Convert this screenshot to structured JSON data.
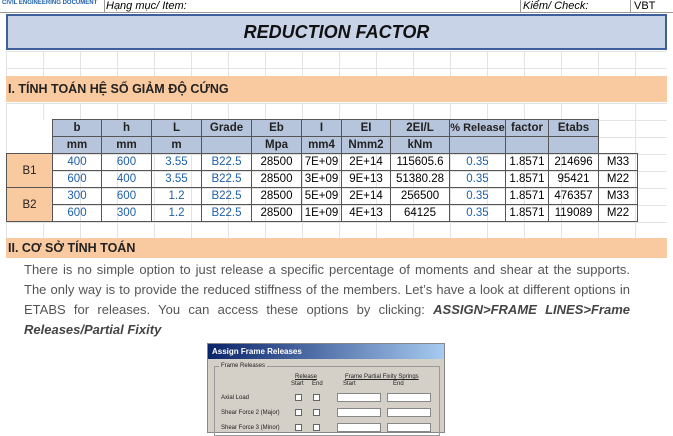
{
  "header": {
    "logo_text": "CIVIL ENGINEERING DOCUMENT",
    "item_label": "Hạng mục/ Item:",
    "check_label": "Kiểm/ Check:",
    "check_value": "VBT"
  },
  "title": "REDUCTION FACTOR",
  "section1": {
    "heading": "I. TÍNH TOÁN HỆ SỐ GIẢM ĐỘ CỨNG"
  },
  "table": {
    "headers_top": [
      "b",
      "h",
      "L",
      "Grade",
      "Eb",
      "I",
      "EI",
      "2EI/L",
      "% Release",
      "factor",
      "Etabs"
    ],
    "headers_unit": [
      "mm",
      "mm",
      "m",
      "",
      "Mpa",
      "mm4",
      "Nmm2",
      "kNm",
      "",
      "",
      ""
    ],
    "groups": [
      {
        "label": "B1",
        "rows": [
          [
            "400",
            "600",
            "3.55",
            "B22.5",
            "28500",
            "7E+09",
            "2E+14",
            "115605.6",
            "0.35",
            "1.8571",
            "214696",
            "M33"
          ],
          [
            "600",
            "400",
            "3.55",
            "B22.5",
            "28500",
            "3E+09",
            "9E+13",
            "51380.28",
            "0.35",
            "1.8571",
            "95421",
            "M22"
          ]
        ]
      },
      {
        "label": "B2",
        "rows": [
          [
            "300",
            "600",
            "1.2",
            "B22.5",
            "28500",
            "5E+09",
            "2E+14",
            "256500",
            "0.35",
            "1.8571",
            "476357",
            "M33"
          ],
          [
            "600",
            "300",
            "1.2",
            "B22.5",
            "28500",
            "1E+09",
            "4E+13",
            "64125",
            "0.35",
            "1.8571",
            "119089",
            "M22"
          ]
        ]
      }
    ]
  },
  "section2": {
    "heading": "II. CƠ SỞ TÍNH TOÁN",
    "paragraph": "There is no simple option to just release a specific percentage of moments and shear at the supports. The only way is to provide the reduced stiffness of the members. Let’s have a look at different options in ETABS for releases. You can access these options by clicking:",
    "paragraph_em": "ASSIGN>FRAME LINES>Frame Releases/Partial Fixity"
  },
  "dialog": {
    "title": "Assign Frame Releases",
    "group_label": "Frame Releases",
    "col_release": "Release",
    "col_partial": "Frame Partial Fixity Springs",
    "col_start": "Start",
    "col_end": "End",
    "rows": [
      "Axial Load",
      "Shear Force 2 (Major)",
      "Shear Force 3 (Minor)"
    ]
  },
  "colors": {
    "section_bg": "#f9c9a0",
    "header_bg": "#b6c5dc",
    "title_bg": "#c9d3e7",
    "value_blue": "#1f5fa8"
  }
}
